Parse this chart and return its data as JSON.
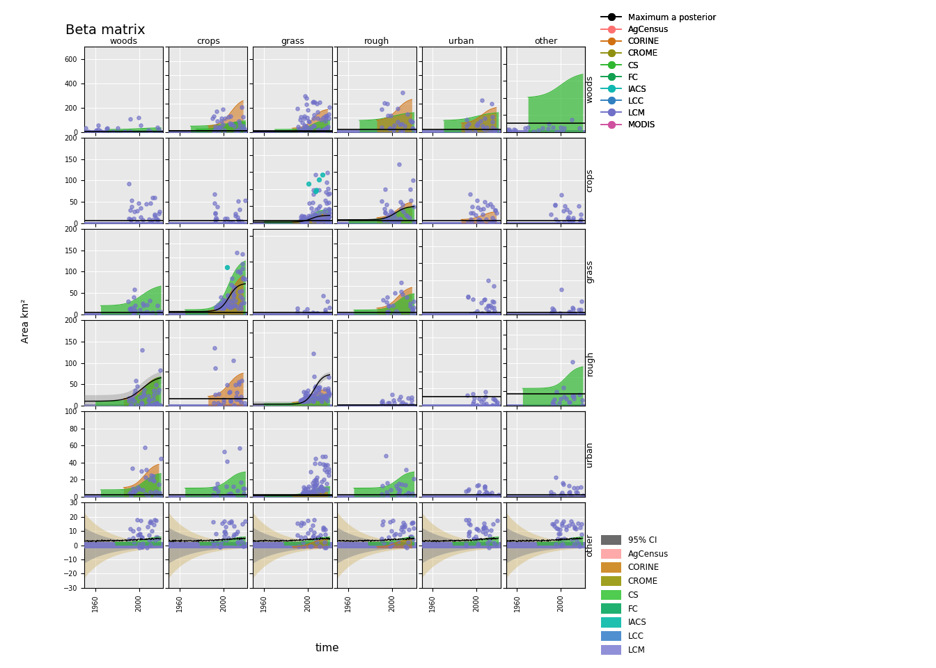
{
  "title": "Beta matrix",
  "xlabel": "time",
  "ylabel": "Area km²",
  "rows": [
    "woods",
    "crops",
    "grass",
    "rough",
    "urban",
    "other"
  ],
  "cols": [
    "woods",
    "crops",
    "grass",
    "rough",
    "urban",
    "other"
  ],
  "panel_bg": "#e8e8e8",
  "grid_color": "#ffffff",
  "sources": {
    "AgCensus": "#ff7070",
    "CORINE": "#d07010",
    "CROME": "#909010",
    "CS": "#30b830",
    "FC": "#10a050",
    "IACS": "#10b8b0",
    "LCC": "#3080c0",
    "LCM": "#7070c8",
    "MODIS": "#d050a0"
  },
  "ylims": {
    "woods_woods": [
      0,
      700
    ],
    "woods_crops": [
      0,
      300
    ],
    "woods_grass": [
      0,
      700
    ],
    "woods_rough": [
      0,
      150
    ],
    "woods_urban": [
      0,
      150
    ],
    "woods_other": [
      0,
      50
    ],
    "crops_woods": [
      0,
      200
    ],
    "crops_crops": [
      0,
      200
    ],
    "crops_grass": [
      0,
      5000
    ],
    "crops_rough": [
      0,
      500
    ],
    "crops_urban": [
      0,
      200
    ],
    "crops_other": [
      0,
      200
    ],
    "grass_woods": [
      0,
      200
    ],
    "grass_crops": [
      0,
      1500
    ],
    "grass_grass": [
      0,
      6500
    ],
    "grass_rough": [
      0,
      300
    ],
    "grass_urban": [
      0,
      100
    ],
    "grass_other": [
      0,
      50
    ],
    "rough_woods": [
      0,
      200
    ],
    "rough_crops": [
      0,
      100
    ],
    "rough_grass": [
      0,
      700
    ],
    "rough_rough": [
      0,
      700
    ],
    "rough_urban": [
      0,
      50
    ],
    "rough_other": [
      0,
      150
    ],
    "urban_woods": [
      0,
      100
    ],
    "urban_crops": [
      0,
      50
    ],
    "urban_grass": [
      0,
      500
    ],
    "urban_urban": [
      0,
      100
    ],
    "urban_rough": [
      0,
      50
    ],
    "urban_other": [
      0,
      50
    ],
    "other_woods": [
      -30,
      30
    ],
    "other_crops": [
      -30,
      30
    ],
    "other_grass": [
      -30,
      30
    ],
    "other_rough": [
      -30,
      30
    ],
    "other_urban": [
      -30,
      30
    ],
    "other_other": [
      -30,
      30
    ]
  }
}
